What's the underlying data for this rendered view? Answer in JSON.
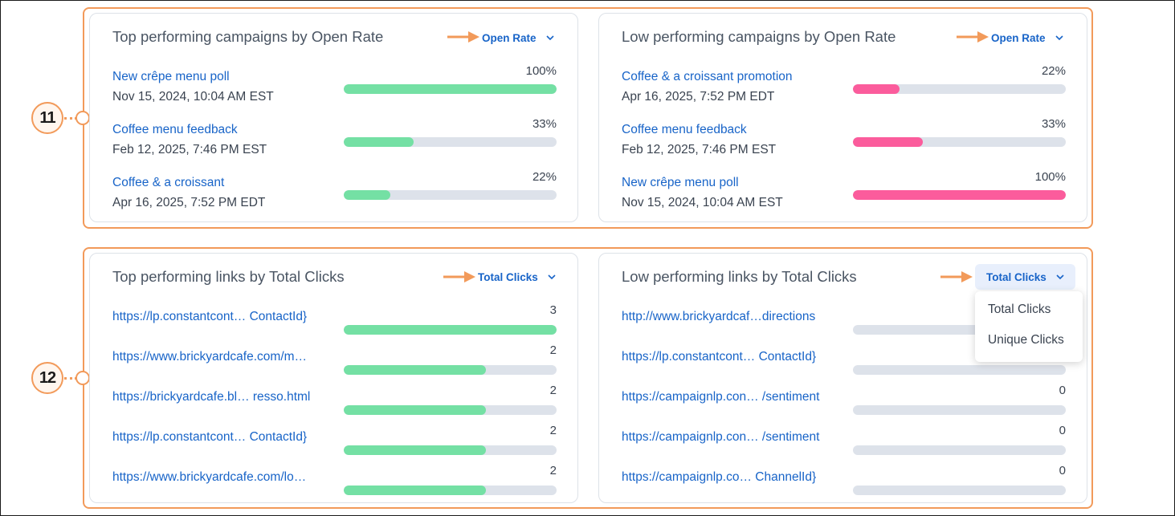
{
  "colors": {
    "annotation": "#f29a5a",
    "link": "#1864c8",
    "top_bar": "#74e0a4",
    "low_bar": "#fb5c9c",
    "track": "#dde2ea"
  },
  "callouts": [
    "11",
    "12"
  ],
  "campaigns": {
    "top": {
      "title": "Top performing campaigns by Open Rate",
      "sort_label": "Open Rate",
      "rows": [
        {
          "name": "New crêpe menu poll",
          "date": "Nov 15, 2024, 10:04 AM EST",
          "value_label": "100%",
          "fraction": 1.0
        },
        {
          "name": "Coffee menu feedback",
          "date": "Feb 12, 2025, 7:46 PM EST",
          "value_label": "33%",
          "fraction": 0.33
        },
        {
          "name": "Coffee & a croissant",
          "date": "Apr 16, 2025, 7:52 PM EDT",
          "value_label": "22%",
          "fraction": 0.22
        }
      ]
    },
    "low": {
      "title": "Low performing campaigns by Open Rate",
      "sort_label": "Open Rate",
      "rows": [
        {
          "name": "Coffee & a croissant promotion",
          "date": "Apr 16, 2025, 7:52 PM EDT",
          "value_label": "22%",
          "fraction": 0.22
        },
        {
          "name": "Coffee menu feedback",
          "date": "Feb 12, 2025, 7:46 PM EST",
          "value_label": "33%",
          "fraction": 0.33
        },
        {
          "name": "New crêpe menu poll",
          "date": "Nov 15, 2024, 10:04 AM EST",
          "value_label": "100%",
          "fraction": 1.0
        }
      ]
    }
  },
  "links": {
    "top": {
      "title": "Top performing links by Total Clicks",
      "sort_label": "Total Clicks",
      "max_value": 3,
      "rows": [
        {
          "url": "https://lp.constantcont… ContactId}",
          "value": 3
        },
        {
          "url": "https://www.brickyardcafe.com/m…",
          "value": 2
        },
        {
          "url": "https://brickyardcafe.bl… resso.html",
          "value": 2
        },
        {
          "url": "https://lp.constantcont… ContactId}",
          "value": 2
        },
        {
          "url": "https://www.brickyardcafe.com/lo…",
          "value": 2
        }
      ]
    },
    "low": {
      "title": "Low performing links by Total Clicks",
      "sort_label": "Total Clicks",
      "max_value": 3,
      "rows": [
        {
          "url": "http://www.brickyardcaf…directions",
          "value": 0,
          "value_label": ""
        },
        {
          "url": "https://lp.constantcont… ContactId}",
          "value": 0,
          "value_label": ""
        },
        {
          "url": "https://campaignlp.con… /sentiment",
          "value": 0,
          "value_label": "0"
        },
        {
          "url": "https://campaignlp.con… /sentiment",
          "value": 0,
          "value_label": "0"
        },
        {
          "url": "https://campaignlp.co… ChannelId}",
          "value": 0,
          "value_label": "0"
        }
      ],
      "dropdown": {
        "open": true,
        "options": [
          "Total Clicks",
          "Unique Clicks"
        ]
      }
    }
  }
}
